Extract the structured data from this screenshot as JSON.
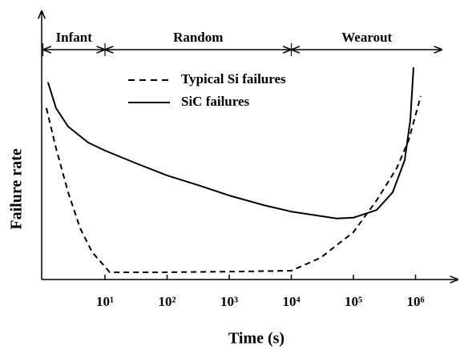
{
  "chart_data": {
    "type": "line",
    "x_label": "Time (s)",
    "y_label": "Failure rate",
    "xscale": "log",
    "xlim": [
      1,
      10000000
    ],
    "ylim": [
      0,
      100
    ],
    "xticks": [
      {
        "value": 10,
        "label": "10¹"
      },
      {
        "value": 100,
        "label": "10²"
      },
      {
        "value": 1000,
        "label": "10³"
      },
      {
        "value": 10000,
        "label": "10⁴"
      },
      {
        "value": 100000,
        "label": "10⁵"
      },
      {
        "value": 1000000,
        "label": "10⁶"
      }
    ],
    "regions": [
      {
        "text": "Infant",
        "x": [
          1,
          10
        ]
      },
      {
        "text": "Random",
        "x": [
          10,
          10000
        ]
      },
      {
        "text": "Wearout",
        "x": [
          10000,
          2700000
        ]
      }
    ],
    "series": [
      {
        "name": "Typical Si failures",
        "color": "#000000",
        "dashed": true,
        "x": [
          1.14,
          1.63,
          2.55,
          3.98,
          6.22,
          10,
          11.9,
          77.6,
          1514,
          10000,
          29600,
          100000,
          236600,
          498000,
          777000,
          1213000
        ],
        "values": [
          64.1,
          49.1,
          32.6,
          19.2,
          10.2,
          4.8,
          2.7,
          2.7,
          3.0,
          3.3,
          8.1,
          17.7,
          29.6,
          41.6,
          52.1,
          68.6
        ]
      },
      {
        "name": "SiC failures",
        "color": "#000000",
        "dashed": false,
        "x": [
          1.21,
          1.63,
          2.55,
          5.36,
          10,
          31.9,
          100,
          343,
          1000,
          3590,
          10000,
          29600,
          53600,
          100000,
          236600,
          429000,
          670000,
          824000,
          929000
        ],
        "values": [
          73.7,
          64.1,
          57.2,
          51.2,
          48.2,
          43.4,
          38.9,
          35.0,
          31.4,
          27.8,
          25.4,
          23.7,
          22.8,
          23.1,
          26.0,
          32.6,
          44.6,
          59.6,
          79.3
        ]
      }
    ]
  }
}
